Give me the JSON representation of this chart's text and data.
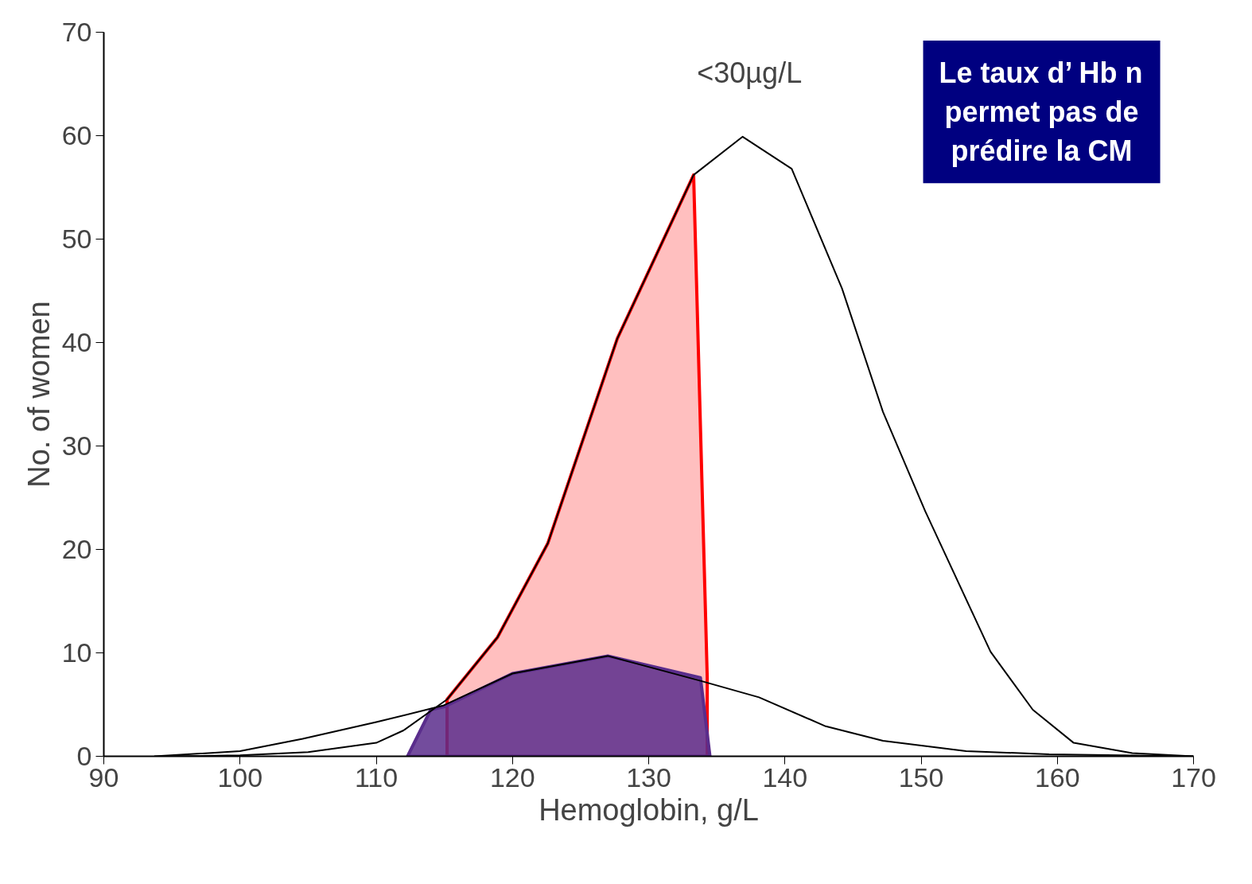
{
  "chart_data": {
    "type": "line",
    "xlabel": "Hemoglobin, g/L",
    "ylabel": "No. of women",
    "annotations": [
      "<30µg/L",
      "Le taux d’ Hb n\npermet pas de\nprédire la CM"
    ],
    "xlim": [
      90,
      170
    ],
    "xticks": [
      90,
      100,
      110,
      120,
      130,
      140,
      150,
      160,
      170
    ],
    "ylim": [
      0,
      70
    ],
    "yticks": [
      0,
      10,
      20,
      30,
      40,
      50,
      60,
      70
    ],
    "grid": false,
    "marker": "none",
    "line_style": "solid",
    "series": [
      {
        "color": "#000000",
        "x": [
          95,
          100,
          105,
          110,
          112,
          115.2,
          118.9,
          122.6,
          127.7,
          133.3,
          136.9,
          140.5,
          144.2,
          147.2,
          150.3,
          155.1,
          158.2,
          161.2,
          165.5,
          170
        ],
        "values": [
          0,
          0.1,
          0.4,
          1.3,
          2.5,
          5.5,
          11.5,
          20.6,
          40.4,
          56.2,
          59.9,
          56.8,
          45.2,
          33.3,
          23.7,
          10.1,
          4.5,
          1.3,
          0.3,
          0
        ]
      },
      {
        "color": "#000000",
        "x": [
          93.7,
          100,
          104.6,
          110,
          114.9,
          120,
          127,
          133.8,
          138.1,
          143,
          147.2,
          153.3,
          159.4,
          170
        ],
        "values": [
          0,
          0.5,
          1.7,
          3.3,
          4.9,
          8.0,
          9.7,
          7.3,
          5.7,
          2.9,
          1.5,
          0.5,
          0.2,
          0
        ]
      },
      {
        "type": "area",
        "color": "#ff0000",
        "x": [
          115.2,
          118.9,
          122.6,
          127.7,
          133.3,
          134.3
        ],
        "values": [
          5.5,
          11.5,
          20.6,
          40.4,
          56.2,
          7.6
        ]
      },
      {
        "type": "area",
        "color": "#5a2d8c",
        "x": [
          112.3,
          114,
          115,
          120,
          127,
          133.8,
          134.5
        ],
        "values": [
          0,
          4.5,
          4.8,
          8.0,
          9.7,
          7.6,
          0
        ]
      }
    ]
  }
}
